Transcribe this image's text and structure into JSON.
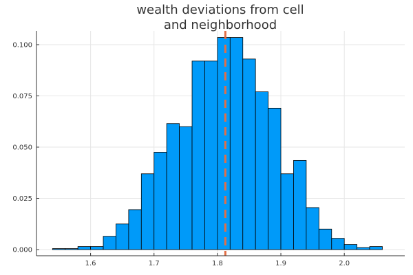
{
  "chart_data": {
    "type": "bar",
    "title_lines": [
      "wealth deviations from cell",
      "and neighborhood"
    ],
    "xlabel": "",
    "ylabel": "",
    "bin_width": 0.02,
    "bins": [
      {
        "x0": 1.54,
        "value": 0.0005
      },
      {
        "x0": 1.56,
        "value": 0.0005
      },
      {
        "x0": 1.58,
        "value": 0.0015
      },
      {
        "x0": 1.6,
        "value": 0.0015
      },
      {
        "x0": 1.62,
        "value": 0.0065
      },
      {
        "x0": 1.64,
        "value": 0.0125
      },
      {
        "x0": 1.66,
        "value": 0.0195
      },
      {
        "x0": 1.68,
        "value": 0.037
      },
      {
        "x0": 1.7,
        "value": 0.0475
      },
      {
        "x0": 1.72,
        "value": 0.0615
      },
      {
        "x0": 1.74,
        "value": 0.06
      },
      {
        "x0": 1.76,
        "value": 0.092
      },
      {
        "x0": 1.78,
        "value": 0.092
      },
      {
        "x0": 1.8,
        "value": 0.1035
      },
      {
        "x0": 1.82,
        "value": 0.1035
      },
      {
        "x0": 1.84,
        "value": 0.093
      },
      {
        "x0": 1.86,
        "value": 0.077
      },
      {
        "x0": 1.88,
        "value": 0.069
      },
      {
        "x0": 1.9,
        "value": 0.037
      },
      {
        "x0": 1.92,
        "value": 0.0435
      },
      {
        "x0": 1.94,
        "value": 0.0205
      },
      {
        "x0": 1.96,
        "value": 0.01
      },
      {
        "x0": 1.98,
        "value": 0.0055
      },
      {
        "x0": 2.0,
        "value": 0.0025
      },
      {
        "x0": 2.02,
        "value": 0.001
      },
      {
        "x0": 2.04,
        "value": 0.0015
      }
    ],
    "xlim": [
      1.5147,
      2.0953
    ],
    "ylim": [
      -0.003,
      0.1067
    ],
    "xticks": [
      1.6,
      1.7,
      1.8,
      1.9,
      2.0
    ],
    "xtick_labels": [
      "1.6",
      "1.7",
      "1.8",
      "1.9",
      "2.0"
    ],
    "yticks": [
      0.0,
      0.025,
      0.05,
      0.075,
      0.1
    ],
    "ytick_labels": [
      "0.000",
      "0.025",
      "0.050",
      "0.075",
      "0.100"
    ],
    "mean_line": {
      "x": 1.8125,
      "style": "dashed"
    },
    "grid": true,
    "legend": false,
    "colors": {
      "bar_fill": "#009AF9",
      "bar_edge": "#000000",
      "mean_line": "#E26F46",
      "grid": "#E6E6E6",
      "axis": "#333333",
      "text": "#333333"
    }
  }
}
